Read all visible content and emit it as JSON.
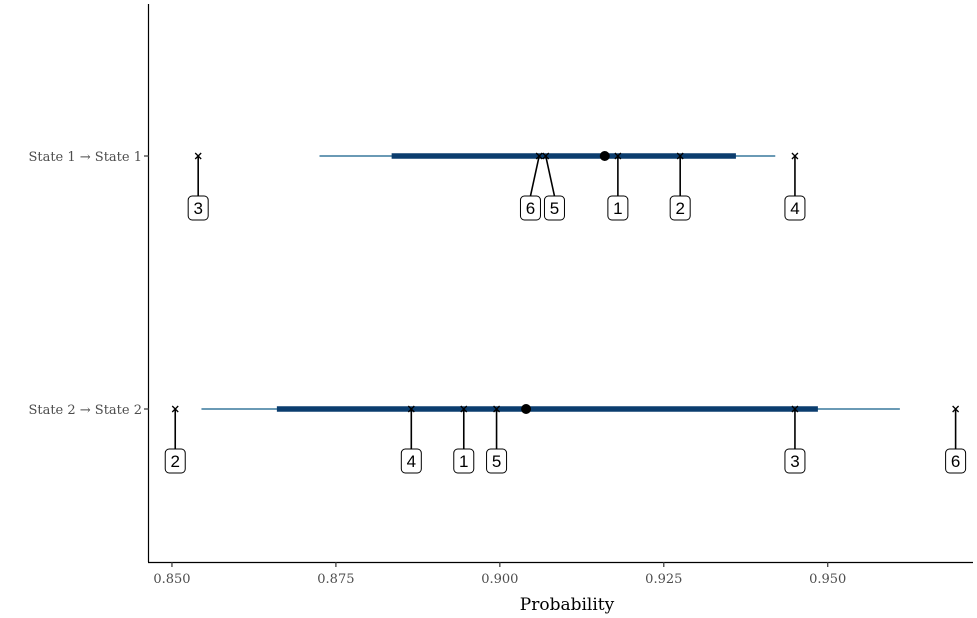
{
  "chart_data": {
    "type": "interval",
    "xlabel": "Probability",
    "ylabel": "",
    "xlim": [
      0.8465,
      0.972
    ],
    "x_ticks": [
      0.85,
      0.875,
      0.9,
      0.925,
      0.95
    ],
    "x_tick_labels": [
      "0.850",
      "0.875",
      "0.900",
      "0.925",
      "0.950"
    ],
    "grid": false,
    "colors": {
      "outer_interval": "#6a9ab5",
      "inner_interval": "#0b3d6e",
      "point": "#000000"
    },
    "rows": [
      {
        "category": "State 1 → State 1",
        "outer": [
          0.8725,
          0.942
        ],
        "inner": [
          0.8835,
          0.936
        ],
        "point": 0.916,
        "markers": [
          {
            "label": "3",
            "x": 0.854
          },
          {
            "label": "6",
            "x": 0.906
          },
          {
            "label": "5",
            "x": 0.907
          },
          {
            "label": "1",
            "x": 0.918
          },
          {
            "label": "2",
            "x": 0.9275
          },
          {
            "label": "4",
            "x": 0.945
          }
        ]
      },
      {
        "category": "State 2 → State 2",
        "outer": [
          0.8545,
          0.961
        ],
        "inner": [
          0.866,
          0.9485
        ],
        "point": 0.904,
        "markers": [
          {
            "label": "2",
            "x": 0.8505
          },
          {
            "label": "4",
            "x": 0.8865
          },
          {
            "label": "1",
            "x": 0.8945
          },
          {
            "label": "5",
            "x": 0.8995
          },
          {
            "label": "3",
            "x": 0.945
          },
          {
            "label": "6",
            "x": 0.9695
          }
        ]
      }
    ]
  }
}
